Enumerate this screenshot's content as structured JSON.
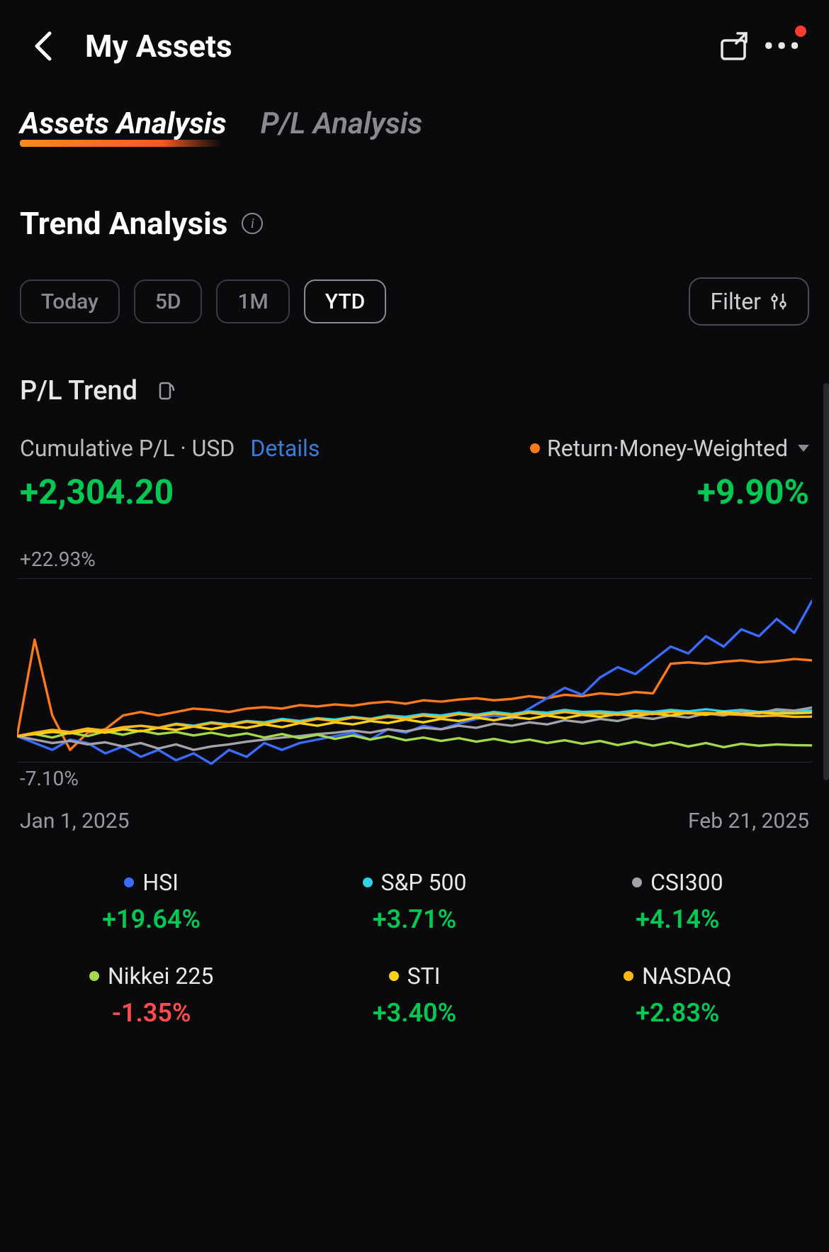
{
  "header": {
    "title": "My Assets"
  },
  "tabs": [
    {
      "label": "Assets Analysis",
      "active": true
    },
    {
      "label": "P/L Analysis",
      "active": false
    }
  ],
  "section": {
    "title": "Trend Analysis"
  },
  "ranges": [
    {
      "label": "Today",
      "selected": false
    },
    {
      "label": "5D",
      "selected": false
    },
    {
      "label": "1M",
      "selected": false
    },
    {
      "label": "YTD",
      "selected": true
    }
  ],
  "filter_label": "Filter",
  "pl_trend": {
    "title": "P/L Trend",
    "cumulative_label": "Cumulative P/L · USD",
    "details_label": "Details",
    "cumulative_value": "+2,304.20",
    "cumulative_positive": true,
    "return_label": "Return·Money-Weighted",
    "return_value": "+9.90%",
    "return_positive": true
  },
  "chart": {
    "type": "line",
    "y_max_label": "+22.93%",
    "y_min_label": "-7.10%",
    "ylim": [
      -7.1,
      22.93
    ],
    "x_start_label": "Jan 1, 2025",
    "x_end_label": "Feb 21, 2025",
    "background_color": "#0a0a0c",
    "grid_color": "#2a2a2e",
    "line_width": 3,
    "series": [
      {
        "name": "Return",
        "color": "#ff7a1a",
        "points": [
          0,
          14,
          3,
          -2,
          0.5,
          1,
          3,
          3.5,
          3,
          3.5,
          4,
          3.8,
          3.5,
          4,
          4.2,
          4,
          4.5,
          4.3,
          4.6,
          4.4,
          4.8,
          5,
          4.7,
          5.2,
          5,
          5.3,
          5.5,
          5.2,
          5.4,
          5.8,
          5.5,
          6,
          5.8,
          6.2,
          6,
          6.4,
          6.2,
          10.5,
          10.7,
          10.5,
          10.8,
          11,
          10.7,
          10.9,
          11.2,
          11
        ]
      },
      {
        "name": "HSI",
        "color": "#3a6cff",
        "points": [
          0,
          -1,
          -2,
          -0.5,
          -1,
          -2.5,
          -1.5,
          -3,
          -2,
          -3.5,
          -2.5,
          -4,
          -2,
          -3,
          -1,
          -2,
          -1,
          -0.5,
          0,
          0.5,
          -0.5,
          1,
          0.5,
          1.5,
          1,
          1.8,
          2.5,
          3,
          2.5,
          4,
          5.5,
          7,
          6,
          8.5,
          10,
          9,
          11,
          13,
          12,
          14.5,
          13,
          15.5,
          14.5,
          17,
          15,
          19.64
        ]
      },
      {
        "name": "S&P 500",
        "color": "#2ed3e8",
        "points": [
          0,
          0.4,
          0.8,
          0.5,
          1,
          0.8,
          1.2,
          1.5,
          1.2,
          1.8,
          1.5,
          2,
          1.7,
          2.2,
          2,
          2.5,
          2.2,
          2.6,
          2.4,
          2.8,
          2.5,
          3,
          2.8,
          3.2,
          3,
          3.4,
          3.1,
          3.5,
          3.2,
          3.6,
          3.4,
          3.8,
          3.5,
          3.6,
          3.4,
          3.7,
          3.5,
          3.8,
          3.6,
          3.9,
          3.6,
          3.8,
          3.5,
          3.7,
          3.5,
          3.71
        ]
      },
      {
        "name": "CSI300",
        "color": "#a3a3a8",
        "points": [
          0,
          -0.5,
          -1,
          -0.7,
          -1.2,
          -0.9,
          -1.5,
          -1,
          -1.8,
          -1.2,
          -2,
          -1.5,
          -1.2,
          -0.8,
          -0.5,
          -0.2,
          0,
          0.3,
          0.5,
          0.8,
          0.5,
          1,
          0.7,
          1.2,
          1,
          1.5,
          1.2,
          1.8,
          1.5,
          2,
          1.7,
          2.3,
          2,
          2.5,
          2.2,
          2.8,
          2.5,
          3,
          2.7,
          3.3,
          3,
          3.6,
          3.3,
          3.9,
          3.7,
          4.14
        ]
      },
      {
        "name": "Nikkei 225",
        "color": "#a3d94a",
        "points": [
          0,
          0.3,
          -0.2,
          0.5,
          0,
          0.7,
          0.2,
          0.8,
          0.3,
          0.6,
          0.1,
          0.5,
          0,
          0.4,
          -0.2,
          0.3,
          -0.3,
          0.2,
          -0.4,
          0.1,
          -0.5,
          0,
          -0.6,
          -0.2,
          -0.7,
          -0.3,
          -0.8,
          -0.4,
          -0.9,
          -0.5,
          -1.0,
          -0.6,
          -1.1,
          -0.7,
          -1.3,
          -0.8,
          -1.4,
          -0.9,
          -1.5,
          -1.0,
          -1.6,
          -1.1,
          -1.4,
          -1.2,
          -1.3,
          -1.35
        ]
      },
      {
        "name": "STI",
        "color": "#ffd21a",
        "points": [
          0,
          0.3,
          0.6,
          0.4,
          0.8,
          0.5,
          1,
          0.7,
          1.2,
          0.9,
          1.4,
          1,
          1.5,
          1.2,
          1.7,
          1.3,
          1.9,
          1.5,
          2,
          1.7,
          2.2,
          1.9,
          2.4,
          2,
          2.5,
          2.2,
          2.7,
          2.3,
          2.8,
          2.5,
          3,
          2.6,
          3.1,
          2.8,
          3.2,
          2.9,
          3.3,
          3,
          3.4,
          3.1,
          3.5,
          3.2,
          3.4,
          3.3,
          3.3,
          3.4
        ]
      },
      {
        "name": "NASDAQ",
        "color": "#ffb81a",
        "points": [
          0,
          0.5,
          0.9,
          0.6,
          1.1,
          0.8,
          1.3,
          1.5,
          1.2,
          1.7,
          1.4,
          1.9,
          1.6,
          2.1,
          1.8,
          2.3,
          2,
          2.5,
          2.2,
          2.7,
          2.4,
          2.8,
          2.5,
          3,
          2.7,
          3.2,
          2.9,
          3.3,
          3,
          3.4,
          3.1,
          3.5,
          3.2,
          3.3,
          3.1,
          3.4,
          3.2,
          3.5,
          3.3,
          3.4,
          3.2,
          3.1,
          2.9,
          3,
          2.8,
          2.83
        ]
      }
    ]
  },
  "legend": [
    {
      "name": "HSI",
      "color": "#3a6cff",
      "pct": "+19.64%",
      "positive": true
    },
    {
      "name": "S&P 500",
      "color": "#2ed3e8",
      "pct": "+3.71%",
      "positive": true
    },
    {
      "name": "CSI300",
      "color": "#a3a3a8",
      "pct": "+4.14%",
      "positive": true
    },
    {
      "name": "Nikkei 225",
      "color": "#a3d94a",
      "pct": "-1.35%",
      "positive": false
    },
    {
      "name": "STI",
      "color": "#ffd21a",
      "pct": "+3.40%",
      "positive": true
    },
    {
      "name": "NASDAQ",
      "color": "#ffb81a",
      "pct": "+2.83%",
      "positive": true
    }
  ]
}
